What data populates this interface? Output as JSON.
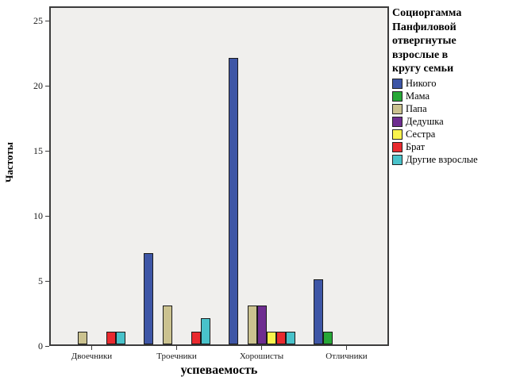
{
  "figure": {
    "background": "#ffffff",
    "plot_background": "#f0efed",
    "frame_color": "#3c3c3c"
  },
  "chart_data": {
    "type": "bar",
    "title": "",
    "xlabel": "успеваемость",
    "ylabel": "Частоты",
    "categories": [
      "Двоечники",
      "Троечники",
      "Хорошисты",
      "Отличники"
    ],
    "series": [
      {
        "name": "Никого",
        "color": "#3e56a6",
        "values": [
          0,
          7,
          22,
          5
        ]
      },
      {
        "name": "Мама",
        "color": "#27a737",
        "values": [
          0,
          0,
          0,
          1
        ]
      },
      {
        "name": "Папа",
        "color": "#cbc28f",
        "values": [
          1,
          3,
          3,
          0
        ]
      },
      {
        "name": "Дедушка",
        "color": "#6e2d90",
        "values": [
          0,
          0,
          3,
          0
        ]
      },
      {
        "name": "Сестра",
        "color": "#f9f34d",
        "values": [
          0,
          0,
          1,
          0
        ]
      },
      {
        "name": "Брат",
        "color": "#e92a2f",
        "values": [
          1,
          1,
          1,
          0
        ]
      },
      {
        "name": "Другие взрослые",
        "color": "#49c2ca",
        "values": [
          1,
          2,
          1,
          0
        ]
      }
    ],
    "yticks": [
      0,
      5,
      10,
      15,
      20,
      25
    ],
    "ylim": [
      0,
      26.1
    ],
    "grid": false,
    "legend_position": "right",
    "legend_title": "Социоргамма Панфиловой отвергнутые взрослые в кругу семьи",
    "legend_title_lines": [
      "Социоргамма",
      "Панфиловой",
      "отвергнутые",
      "взрослые в",
      "кругу семьи"
    ]
  }
}
